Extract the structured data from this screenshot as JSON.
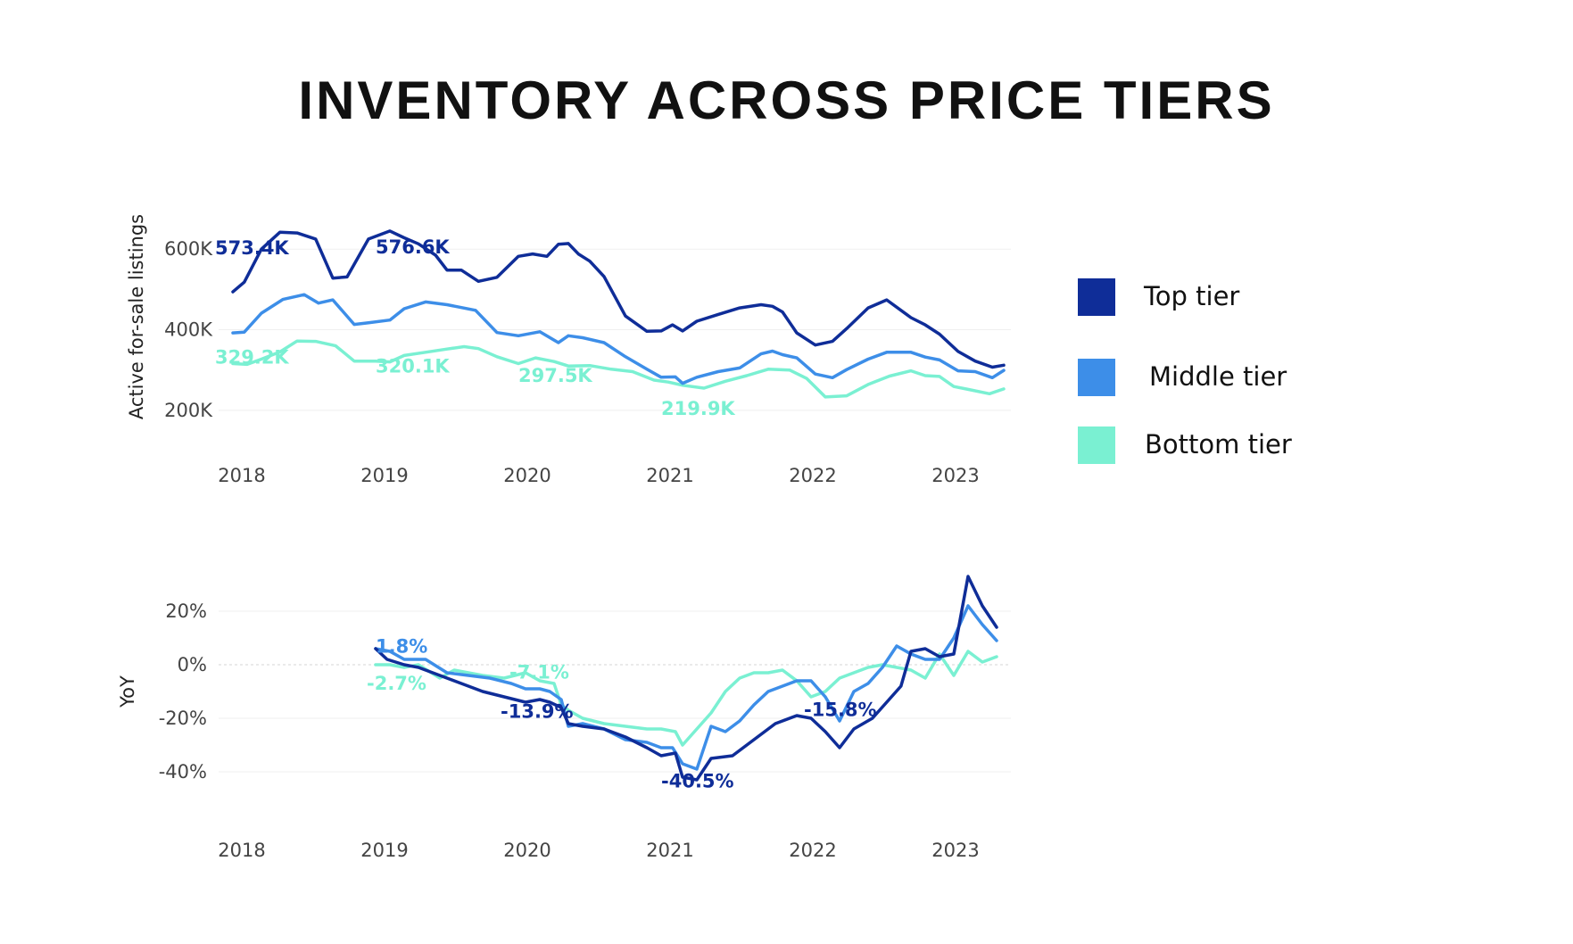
{
  "title": "INVENTORY ACROSS PRICE TIERS",
  "colors": {
    "top": "#0f2d98",
    "middle": "#3d8ee8",
    "bottom": "#7af0d2"
  },
  "legend": [
    {
      "label": "Top tier",
      "color": "#0f2d98"
    },
    {
      "label": "Middle tier",
      "color": "#3d8ee8"
    },
    {
      "label": "Bottom tier",
      "color": "#7af0d2"
    }
  ],
  "chart_data": [
    {
      "type": "line",
      "ylabel": "Active for-sale listings",
      "xlabel": "",
      "x_ticks": [
        "2018",
        "2019",
        "2020",
        "2021",
        "2022",
        "2023"
      ],
      "y_ticks": [
        "200K",
        "400K",
        "600K"
      ],
      "y_tick_values": [
        200,
        400,
        600
      ],
      "ylim": [
        100,
        720
      ],
      "x_range": [
        2017.9,
        2023.45
      ],
      "unit": "thousands of listings",
      "grid": "horizontal",
      "legend_position": "right",
      "series": [
        {
          "name": "Top tier",
          "color": "#0f2d98",
          "x": [
            2018.0,
            2018.08,
            2018.2,
            2018.33,
            2018.45,
            2018.58,
            2018.7,
            2018.8,
            2018.95,
            2019.1,
            2019.2,
            2019.3,
            2019.42,
            2019.5,
            2019.6,
            2019.72,
            2019.85,
            2020.0,
            2020.1,
            2020.2,
            2020.28,
            2020.35,
            2020.42,
            2020.5,
            2020.6,
            2020.75,
            2020.9,
            2021.0,
            2021.08,
            2021.15,
            2021.25,
            2021.4,
            2021.55,
            2021.7,
            2021.78,
            2021.85,
            2021.95,
            2022.08,
            2022.2,
            2022.3,
            2022.45,
            2022.58,
            2022.75,
            2022.85,
            2022.95,
            2023.08,
            2023.2,
            2023.32,
            2023.4
          ],
          "values": [
            494,
            518,
            600,
            642,
            640,
            625,
            528,
            531,
            625,
            645,
            628,
            613,
            585,
            548,
            548,
            520,
            530,
            582,
            588,
            582,
            612,
            614,
            588,
            570,
            532,
            434,
            396,
            397,
            412,
            397,
            421,
            438,
            454,
            462,
            458,
            444,
            392,
            362,
            371,
            403,
            454,
            474,
            430,
            412,
            389,
            346,
            322,
            307,
            312
          ]
        },
        {
          "name": "Middle tier",
          "color": "#3d8ee8",
          "x": [
            2018.0,
            2018.08,
            2018.2,
            2018.35,
            2018.5,
            2018.6,
            2018.7,
            2018.85,
            2018.95,
            2019.1,
            2019.2,
            2019.35,
            2019.5,
            2019.7,
            2019.85,
            2020.0,
            2020.15,
            2020.28,
            2020.35,
            2020.45,
            2020.6,
            2020.75,
            2020.9,
            2021.0,
            2021.1,
            2021.15,
            2021.25,
            2021.4,
            2021.55,
            2021.7,
            2021.78,
            2021.85,
            2021.95,
            2022.08,
            2022.2,
            2022.3,
            2022.45,
            2022.58,
            2022.75,
            2022.85,
            2022.95,
            2023.08,
            2023.2,
            2023.32,
            2023.4
          ],
          "values": [
            392,
            394,
            441,
            475,
            487,
            466,
            474,
            413,
            417,
            424,
            452,
            469,
            462,
            448,
            393,
            385,
            395,
            368,
            385,
            380,
            368,
            333,
            302,
            282,
            283,
            267,
            282,
            296,
            305,
            340,
            347,
            338,
            330,
            290,
            281,
            301,
            327,
            344,
            344,
            332,
            325,
            298,
            296,
            281,
            299
          ]
        },
        {
          "name": "Bottom tier",
          "color": "#7af0d2",
          "x": [
            2018.0,
            2018.1,
            2018.2,
            2018.33,
            2018.45,
            2018.58,
            2018.72,
            2018.85,
            2019.0,
            2019.1,
            2019.2,
            2019.35,
            2019.5,
            2019.62,
            2019.72,
            2019.85,
            2020.0,
            2020.12,
            2020.25,
            2020.35,
            2020.5,
            2020.65,
            2020.8,
            2020.95,
            2021.05,
            2021.15,
            2021.3,
            2021.45,
            2021.6,
            2021.75,
            2021.9,
            2022.02,
            2022.15,
            2022.3,
            2022.45,
            2022.6,
            2022.75,
            2022.85,
            2022.95,
            2023.05,
            2023.15,
            2023.3,
            2023.4
          ],
          "values": [
            316,
            314,
            327,
            345,
            372,
            371,
            360,
            322,
            322,
            320,
            336,
            344,
            352,
            358,
            353,
            333,
            316,
            330,
            321,
            310,
            311,
            302,
            296,
            275,
            270,
            262,
            255,
            272,
            286,
            302,
            300,
            279,
            233,
            236,
            264,
            285,
            298,
            286,
            284,
            259,
            252,
            241,
            253
          ]
        }
      ],
      "annotations": [
        {
          "text": "573.4K",
          "series": "Top tier",
          "x": 2018.0,
          "y": 573.4
        },
        {
          "text": "576.6K",
          "series": "Top tier",
          "x": 2019.0,
          "y": 576.6
        },
        {
          "text": "329.2K",
          "series": "Bottom tier",
          "x": 2018.0,
          "y": 329.2
        },
        {
          "text": "320.1K",
          "series": "Bottom tier",
          "x": 2019.0,
          "y": 320.1
        },
        {
          "text": "297.5K",
          "series": "Bottom tier",
          "x": 2020.0,
          "y": 297.5
        },
        {
          "text": "219.9K",
          "series": "Bottom tier",
          "x": 2021.0,
          "y": 219.9
        }
      ]
    },
    {
      "type": "line",
      "ylabel": "YoY",
      "xlabel": "",
      "x_ticks": [
        "2018",
        "2019",
        "2020",
        "2021",
        "2022",
        "2023"
      ],
      "y_ticks": [
        "20%",
        "0%",
        "-20%",
        "-40%"
      ],
      "y_tick_values": [
        20,
        0,
        -20,
        -40
      ],
      "ylim": [
        -55,
        35
      ],
      "x_range": [
        2017.9,
        2023.45
      ],
      "unit": "percent",
      "grid": "horizontal",
      "series": [
        {
          "name": "Top tier",
          "color": "#0f2d98",
          "x": [
            2019.0,
            2019.08,
            2019.2,
            2019.3,
            2019.45,
            2019.6,
            2019.75,
            2019.9,
            2020.05,
            2020.15,
            2020.22,
            2020.3,
            2020.35,
            2020.45,
            2020.6,
            2020.75,
            2020.9,
            2021.0,
            2021.1,
            2021.15,
            2021.25,
            2021.35,
            2021.5,
            2021.65,
            2021.8,
            2021.95,
            2022.05,
            2022.15,
            2022.25,
            2022.35,
            2022.48,
            2022.58,
            2022.68,
            2022.75,
            2022.85,
            2022.95,
            2023.05,
            2023.15,
            2023.25,
            2023.35
          ],
          "values": [
            6,
            2,
            0,
            -1,
            -4,
            -7,
            -10,
            -12,
            -14,
            -13,
            -14,
            -16,
            -22,
            -23,
            -24,
            -27,
            -31,
            -34,
            -33,
            -42,
            -43,
            -35,
            -34,
            -28,
            -22,
            -19,
            -20,
            -25,
            -31,
            -24,
            -20,
            -14,
            -8,
            5,
            6,
            3,
            4,
            33,
            22,
            14
          ]
        },
        {
          "name": "Middle tier",
          "color": "#3d8ee8",
          "x": [
            2019.0,
            2019.1,
            2019.2,
            2019.35,
            2019.5,
            2019.65,
            2019.8,
            2019.95,
            2020.05,
            2020.15,
            2020.22,
            2020.3,
            2020.35,
            2020.45,
            2020.6,
            2020.75,
            2020.9,
            2021.0,
            2021.08,
            2021.15,
            2021.25,
            2021.35,
            2021.45,
            2021.55,
            2021.65,
            2021.75,
            2021.85,
            2021.95,
            2022.05,
            2022.15,
            2022.25,
            2022.35,
            2022.45,
            2022.55,
            2022.65,
            2022.75,
            2022.85,
            2022.95,
            2023.05,
            2023.15,
            2023.25,
            2023.35
          ],
          "values": [
            6,
            5,
            2,
            2,
            -3,
            -4,
            -5,
            -7,
            -9,
            -9,
            -10,
            -13,
            -23,
            -22,
            -24,
            -28,
            -29,
            -31,
            -31,
            -37,
            -39,
            -23,
            -25,
            -21,
            -15,
            -10,
            -8,
            -6,
            -6,
            -12,
            -21,
            -10,
            -7,
            -1,
            7,
            4,
            2,
            2,
            10,
            22,
            15,
            9
          ]
        },
        {
          "name": "Bottom tier",
          "color": "#7af0d2",
          "x": [
            2019.0,
            2019.1,
            2019.2,
            2019.3,
            2019.45,
            2019.55,
            2019.65,
            2019.75,
            2019.9,
            2020.05,
            2020.15,
            2020.25,
            2020.3,
            2020.35,
            2020.45,
            2020.6,
            2020.75,
            2020.9,
            2021.0,
            2021.1,
            2021.15,
            2021.25,
            2021.35,
            2021.45,
            2021.55,
            2021.65,
            2021.75,
            2021.85,
            2021.95,
            2022.05,
            2022.15,
            2022.25,
            2022.35,
            2022.45,
            2022.55,
            2022.65,
            2022.75,
            2022.85,
            2022.95,
            2023.05,
            2023.15,
            2023.25,
            2023.35
          ],
          "values": [
            0,
            0,
            -1,
            0,
            -5,
            -2,
            -3,
            -4,
            -5,
            -3,
            -6,
            -7,
            -15,
            -17,
            -20,
            -22,
            -23,
            -24,
            -24,
            -25,
            -30,
            -24,
            -18,
            -10,
            -5,
            -3,
            -3,
            -2,
            -6,
            -12,
            -10,
            -5,
            -3,
            -1,
            0,
            -1,
            -2,
            -5,
            4,
            -4,
            5,
            1,
            3
          ]
        }
      ],
      "annotations": [
        {
          "text": "1.8%",
          "series": "Middle tier",
          "x": 2019.0,
          "y": 1.8
        },
        {
          "text": "-2.7%",
          "series": "Bottom tier",
          "x": 2019.0,
          "y": -2.7
        },
        {
          "text": "-7.1%",
          "series": "Bottom tier",
          "x": 2020.0,
          "y": -7.1
        },
        {
          "text": "-13.9%",
          "series": "Top tier",
          "x": 2020.0,
          "y": -13.9
        },
        {
          "text": "-40.5%",
          "series": "Top tier",
          "x": 2021.0,
          "y": -40.5
        },
        {
          "text": "-15.8%",
          "series": "Top tier",
          "x": 2022.0,
          "y": -15.8
        }
      ]
    }
  ]
}
